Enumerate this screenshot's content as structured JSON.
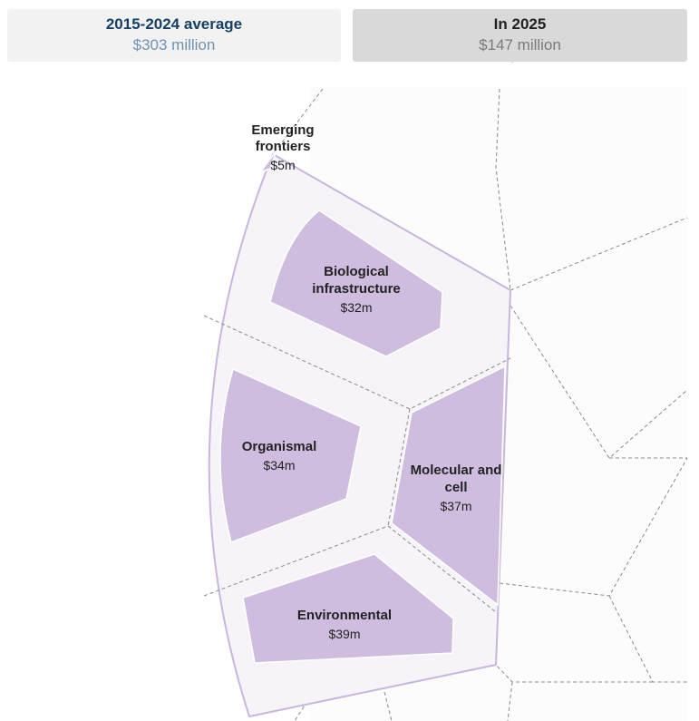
{
  "tabs": {
    "left": {
      "title": "2015-2024 average",
      "value": "$303 million"
    },
    "right": {
      "title": "In 2025",
      "value": "$147 million"
    }
  },
  "colors": {
    "cell_fill": "#cfbddf",
    "region_fill": "#f6f3f9",
    "region_stroke": "#c9b6dc",
    "dashed_line": "#8a8a8a",
    "title_active": "#163f66",
    "value_muted": "#6e93b3"
  },
  "chart_data": {
    "type": "voronoi-treemap",
    "title": "In 2025",
    "total": "$147 million",
    "comparison_total": "$303 million",
    "comparison_label": "2015-2024 average",
    "cells": [
      {
        "name_lines": [
          "Emerging",
          "frontiers"
        ],
        "value": 5,
        "value_label": "$5m"
      },
      {
        "name_lines": [
          "Biological",
          "infrastructure"
        ],
        "value": 32,
        "value_label": "$32m"
      },
      {
        "name_lines": [
          "Organismal"
        ],
        "value": 34,
        "value_label": "$34m"
      },
      {
        "name_lines": [
          "Molecular and",
          "cell"
        ],
        "value": 37,
        "value_label": "$37m"
      },
      {
        "name_lines": [
          "Environmental"
        ],
        "value": 39,
        "value_label": "$39m"
      }
    ]
  }
}
